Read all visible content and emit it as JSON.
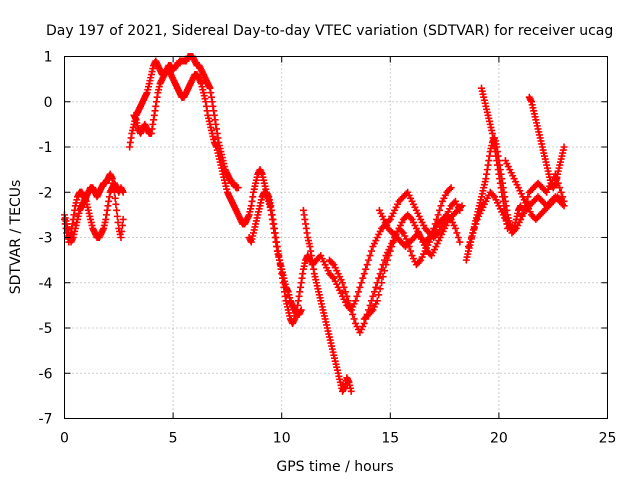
{
  "chart_data": {
    "type": "scatter",
    "title": "Day 197 of 2021, Sidereal Day-to-day VTEC variation (SDTVAR) for receiver ucag",
    "xlabel": "GPS time / hours",
    "ylabel": "SDTVAR / TECUs",
    "xlim": [
      0,
      25
    ],
    "ylim": [
      -7,
      1
    ],
    "xticks": [
      0,
      5,
      10,
      15,
      20,
      25
    ],
    "yticks": [
      -7,
      -6,
      -5,
      -4,
      -3,
      -2,
      -1,
      0,
      1
    ],
    "xtick_labels": [
      "0",
      "5",
      "10",
      "15",
      "20",
      "25"
    ],
    "ytick_labels": [
      "-7",
      "-6",
      "-5",
      "-4",
      "-3",
      "-2",
      "-1",
      "0",
      "1"
    ],
    "grid": true,
    "marker": "+",
    "marker_color": "#ff0000",
    "series": [
      {
        "x": [
          0.0,
          0.1,
          0.2,
          0.3,
          0.4,
          0.5,
          0.6,
          0.7,
          0.8,
          0.9,
          1.0,
          1.1,
          1.2,
          1.3,
          1.4,
          1.5,
          1.6,
          1.7,
          1.8,
          1.9,
          2.0,
          2.1,
          2.2,
          2.3,
          2.4,
          2.5,
          2.6,
          2.7
        ],
        "y": [
          -2.6,
          -2.9,
          -3.1,
          -2.9,
          -2.6,
          -2.3,
          -2.1,
          -2.0,
          -2.0,
          -2.1,
          -2.2,
          -2.4,
          -2.6,
          -2.8,
          -2.9,
          -3.0,
          -3.0,
          -2.9,
          -2.8,
          -2.6,
          -2.3,
          -2.0,
          -1.9,
          -1.8,
          -1.9,
          -2.0,
          -1.9,
          -2.0
        ]
      },
      {
        "x": [
          0.0,
          0.1,
          0.2,
          0.3,
          0.4,
          0.5,
          0.6,
          0.7,
          0.8,
          0.9,
          1.0,
          1.1,
          1.2,
          1.3,
          1.4,
          1.5,
          1.6,
          1.7,
          1.8,
          1.9,
          2.0,
          2.1,
          2.2,
          2.3,
          2.4,
          2.5,
          2.6,
          2.7
        ],
        "y": [
          -2.5,
          -2.7,
          -2.9,
          -3.1,
          -3.0,
          -2.8,
          -2.6,
          -2.4,
          -2.3,
          -2.2,
          -2.1,
          -2.0,
          -1.9,
          -1.9,
          -2.0,
          -2.1,
          -2.0,
          -1.9,
          -1.8,
          -1.8,
          -1.7,
          -1.6,
          -1.7,
          -2.0,
          -2.4,
          -2.8,
          -3.0,
          -2.6
        ]
      },
      {
        "x": [
          3.0,
          3.1,
          3.2,
          3.3,
          3.4,
          3.5,
          3.6,
          3.7,
          3.8,
          3.9,
          4.0,
          4.1,
          4.2,
          4.3,
          4.4,
          4.5,
          4.6,
          4.7,
          4.8,
          4.9,
          5.0,
          5.1,
          5.2,
          5.3,
          5.4,
          5.5,
          5.6,
          5.7,
          5.8,
          5.9,
          6.0,
          6.1,
          6.2,
          6.3,
          6.4,
          6.5,
          6.6,
          6.7,
          6.8,
          6.9,
          7.0,
          7.1,
          7.2,
          7.3,
          7.4,
          7.5,
          7.6,
          7.7,
          7.8,
          7.9,
          8.0
        ],
        "y": [
          -1.0,
          -0.7,
          -0.5,
          -0.3,
          -0.2,
          -0.1,
          0.0,
          0.1,
          0.2,
          0.4,
          0.6,
          0.8,
          0.9,
          0.8,
          0.7,
          0.6,
          0.6,
          0.7,
          0.8,
          0.8,
          0.7,
          0.8,
          0.8,
          0.9,
          0.9,
          0.9,
          0.9,
          1.0,
          1.0,
          1.0,
          0.9,
          0.8,
          0.8,
          0.7,
          0.6,
          0.5,
          0.4,
          0.3,
          0.0,
          -0.3,
          -0.6,
          -0.9,
          -1.1,
          -1.3,
          -1.5,
          -1.6,
          -1.7,
          -1.8,
          -1.8,
          -1.9,
          -1.9
        ]
      },
      {
        "x": [
          3.2,
          3.3,
          3.4,
          3.5,
          3.6,
          3.7,
          3.8,
          3.9,
          4.0,
          4.1,
          4.2,
          4.3,
          4.4,
          4.5,
          4.6,
          4.7,
          4.8,
          4.9,
          5.0,
          5.1,
          5.2,
          5.3,
          5.4,
          5.5,
          5.6,
          5.7,
          5.8,
          5.9,
          6.0,
          6.1,
          6.2,
          6.3,
          6.4,
          6.5,
          6.6,
          6.7,
          6.8,
          6.9,
          7.0,
          7.1,
          7.2,
          7.3,
          7.4,
          7.5,
          7.6,
          7.7,
          7.8,
          7.9,
          8.0,
          8.1,
          8.2,
          8.3,
          8.4,
          8.5,
          8.6,
          8.7,
          8.8,
          8.9,
          9.0,
          9.1,
          9.2,
          9.3,
          9.4,
          9.5,
          9.6,
          9.7,
          9.8,
          9.9,
          10.0,
          10.1,
          10.2,
          10.3,
          10.4,
          10.5,
          10.6,
          10.7,
          10.8,
          10.9
        ],
        "y": [
          -0.3,
          -0.4,
          -0.6,
          -0.7,
          -0.6,
          -0.5,
          -0.6,
          -0.7,
          -0.7,
          -0.4,
          -0.1,
          0.2,
          0.4,
          0.5,
          0.6,
          0.7,
          0.7,
          0.6,
          0.5,
          0.4,
          0.3,
          0.2,
          0.1,
          0.1,
          0.2,
          0.3,
          0.4,
          0.5,
          0.6,
          0.6,
          0.5,
          0.4,
          0.2,
          0.0,
          -0.3,
          -0.5,
          -0.7,
          -0.9,
          -1.0,
          -1.2,
          -1.4,
          -1.6,
          -1.8,
          -2.0,
          -2.1,
          -2.2,
          -2.3,
          -2.4,
          -2.5,
          -2.6,
          -2.7,
          -2.7,
          -2.6,
          -2.5,
          -2.3,
          -2.0,
          -1.8,
          -1.6,
          -1.5,
          -1.6,
          -1.8,
          -2.0,
          -2.2,
          -2.4,
          -2.7,
          -3.0,
          -3.3,
          -3.5,
          -3.7,
          -3.9,
          -4.1,
          -4.2,
          -4.4,
          -4.5,
          -4.6,
          -4.7,
          -4.7,
          -4.6
        ]
      },
      {
        "x": [
          8.5,
          8.6,
          8.7,
          8.8,
          8.9,
          9.0,
          9.1,
          9.2,
          9.3,
          9.4,
          9.5,
          9.6,
          9.7,
          9.8,
          9.9,
          10.0,
          10.1,
          10.2,
          10.3,
          10.4,
          10.5,
          10.6,
          10.7,
          10.8,
          10.9,
          11.0,
          11.1,
          11.2,
          11.3
        ],
        "y": [
          -3.0,
          -3.1,
          -2.9,
          -2.7,
          -2.5,
          -2.3,
          -2.1,
          -2.0,
          -2.0,
          -2.1,
          -2.3,
          -2.6,
          -2.9,
          -3.2,
          -3.5,
          -3.8,
          -4.1,
          -4.4,
          -4.6,
          -4.8,
          -4.9,
          -4.8,
          -4.6,
          -4.3,
          -4.0,
          -3.7,
          -3.5,
          -3.4,
          -3.5
        ]
      },
      {
        "x": [
          11.0,
          11.1,
          11.2,
          11.3,
          11.4,
          11.5,
          11.6,
          11.7,
          11.8,
          11.9,
          12.0,
          12.1,
          12.2,
          12.3,
          12.4,
          12.5,
          12.6,
          12.7,
          12.8,
          12.9,
          13.0,
          13.1,
          13.2
        ],
        "y": [
          -2.4,
          -2.7,
          -3.0,
          -3.2,
          -3.5,
          -3.8,
          -4.0,
          -4.2,
          -4.4,
          -4.6,
          -4.8,
          -5.0,
          -5.2,
          -5.4,
          -5.6,
          -5.8,
          -6.0,
          -6.2,
          -6.4,
          -6.3,
          -6.1,
          -6.2,
          -6.4
        ]
      },
      {
        "x": [
          11.2,
          11.4,
          11.6,
          11.8,
          12.0,
          12.2,
          12.4,
          12.6,
          12.8,
          13.0,
          13.2,
          13.4,
          13.6,
          13.8,
          14.0,
          14.2,
          14.4,
          14.6,
          14.8,
          15.0,
          15.2,
          15.4,
          15.6,
          15.8,
          16.0,
          16.2,
          16.4,
          16.6,
          16.8,
          17.0,
          17.2,
          17.4,
          17.6,
          17.8,
          18.0,
          18.2
        ],
        "y": [
          -3.4,
          -3.6,
          -3.5,
          -3.4,
          -3.6,
          -3.8,
          -3.9,
          -4.1,
          -4.3,
          -4.5,
          -4.6,
          -4.4,
          -4.1,
          -3.8,
          -3.5,
          -3.2,
          -3.0,
          -2.8,
          -2.7,
          -2.6,
          -2.4,
          -2.2,
          -2.1,
          -2.0,
          -2.2,
          -2.4,
          -2.6,
          -2.8,
          -2.9,
          -3.0,
          -2.9,
          -2.7,
          -2.5,
          -2.3,
          -2.2,
          -2.4
        ]
      },
      {
        "x": [
          12.2,
          12.4,
          12.6,
          12.8,
          13.0,
          13.2,
          13.4,
          13.6,
          13.8,
          14.0,
          14.2,
          14.4,
          14.6,
          14.8,
          15.0,
          15.2,
          15.4,
          15.6,
          15.8,
          16.0,
          16.2,
          16.4,
          16.6,
          16.8,
          17.0,
          17.2,
          17.4,
          17.6,
          17.8
        ],
        "y": [
          -3.5,
          -3.6,
          -3.8,
          -4.0,
          -4.3,
          -4.6,
          -4.9,
          -5.1,
          -4.9,
          -4.6,
          -4.3,
          -4.0,
          -3.7,
          -3.4,
          -3.2,
          -3.0,
          -2.8,
          -2.6,
          -2.5,
          -2.6,
          -2.8,
          -3.0,
          -3.1,
          -3.0,
          -2.8,
          -2.5,
          -2.2,
          -2.0,
          -1.9
        ]
      },
      {
        "x": [
          13.8,
          14.0,
          14.2,
          14.4,
          14.6,
          14.8,
          15.0,
          15.2,
          15.4,
          15.6,
          15.8,
          16.0,
          16.2,
          16.4,
          16.6,
          16.8,
          17.0,
          17.2,
          17.4,
          17.6,
          17.8,
          18.0,
          18.2
        ],
        "y": [
          -4.8,
          -4.7,
          -4.6,
          -4.4,
          -4.0,
          -3.6,
          -3.3,
          -3.0,
          -2.8,
          -2.9,
          -3.1,
          -3.4,
          -3.6,
          -3.5,
          -3.3,
          -3.1,
          -2.9,
          -2.7,
          -2.6,
          -2.5,
          -2.6,
          -2.8,
          -3.1
        ]
      },
      {
        "x": [
          14.5,
          14.7,
          14.9,
          15.1,
          15.3,
          15.5,
          15.7,
          15.9,
          16.1,
          16.3,
          16.5,
          16.7,
          16.9,
          17.1,
          17.3,
          17.5,
          17.7,
          17.9,
          18.1,
          18.3
        ],
        "y": [
          -2.4,
          -2.6,
          -2.8,
          -2.9,
          -3.0,
          -3.1,
          -3.2,
          -3.1,
          -3.0,
          -2.9,
          -3.1,
          -3.3,
          -3.4,
          -3.2,
          -3.0,
          -2.8,
          -2.6,
          -2.5,
          -2.4,
          -2.3
        ]
      },
      {
        "x": [
          18.5,
          18.6,
          18.7,
          18.8,
          18.9,
          19.0,
          19.1,
          19.2,
          19.3,
          19.4,
          19.5,
          19.6,
          19.7,
          19.8,
          19.9,
          20.0,
          20.1,
          20.2,
          20.3,
          20.4,
          20.5,
          20.6,
          20.7,
          20.8,
          20.9,
          21.0
        ],
        "y": [
          -3.5,
          -3.3,
          -3.1,
          -2.9,
          -2.7,
          -2.5,
          -2.3,
          -2.1,
          -1.9,
          -1.7,
          -1.4,
          -1.1,
          -0.9,
          -0.8,
          -1.0,
          -1.3,
          -1.6,
          -1.9,
          -2.2,
          -2.5,
          -2.7,
          -2.8,
          -2.8,
          -2.6,
          -2.4,
          -2.3
        ]
      },
      {
        "x": [
          18.6,
          18.8,
          19.0,
          19.2,
          19.4,
          19.6,
          19.8,
          20.0,
          20.2,
          20.4,
          20.6,
          20.8,
          21.0,
          21.2,
          21.4,
          21.6,
          21.8,
          22.0,
          22.2,
          22.4,
          22.6,
          22.8,
          23.0
        ],
        "y": [
          -3.2,
          -2.9,
          -2.6,
          -2.4,
          -2.2,
          -2.0,
          -2.1,
          -2.3,
          -2.5,
          -2.7,
          -2.9,
          -2.8,
          -2.6,
          -2.4,
          -2.3,
          -2.2,
          -2.1,
          -2.2,
          -2.3,
          -2.2,
          -2.1,
          -2.2,
          -2.3
        ]
      },
      {
        "x": [
          19.2,
          19.3,
          19.4,
          19.5,
          19.6,
          19.7,
          19.8,
          19.9,
          20.0,
          20.1,
          20.2,
          20.3,
          20.4
        ],
        "y": [
          0.3,
          0.1,
          -0.1,
          -0.3,
          -0.5,
          -0.7,
          -1.0,
          -1.3,
          -1.6,
          -1.9,
          -2.2,
          -2.5,
          -2.8
        ]
      },
      {
        "x": [
          20.3,
          20.5,
          20.7,
          20.9,
          21.1,
          21.3,
          21.5,
          21.7,
          21.9,
          22.1,
          22.3,
          22.5,
          22.7,
          22.9
        ],
        "y": [
          -1.3,
          -1.5,
          -1.7,
          -1.9,
          -2.1,
          -2.3,
          -2.5,
          -2.6,
          -2.5,
          -2.4,
          -2.3,
          -2.2,
          -2.1,
          -2.2
        ]
      },
      {
        "x": [
          21.0,
          21.2,
          21.4,
          21.6,
          21.8,
          22.0,
          22.2,
          22.4,
          22.6,
          22.8,
          23.0
        ],
        "y": [
          -2.6,
          -2.3,
          -2.0,
          -1.9,
          -1.8,
          -1.9,
          -2.0,
          -1.8,
          -1.6,
          -1.9,
          -2.2
        ]
      },
      {
        "x": [
          21.4,
          21.5,
          21.6,
          21.7,
          21.8,
          21.9,
          22.0,
          22.1,
          22.2,
          22.3,
          22.4,
          22.5,
          22.6,
          22.7,
          22.8,
          22.9,
          23.0
        ],
        "y": [
          0.1,
          0.0,
          -0.2,
          -0.4,
          -0.6,
          -0.8,
          -1.0,
          -1.2,
          -1.4,
          -1.6,
          -1.8,
          -1.9,
          -1.8,
          -1.6,
          -1.4,
          -1.2,
          -1.0
        ]
      }
    ]
  }
}
